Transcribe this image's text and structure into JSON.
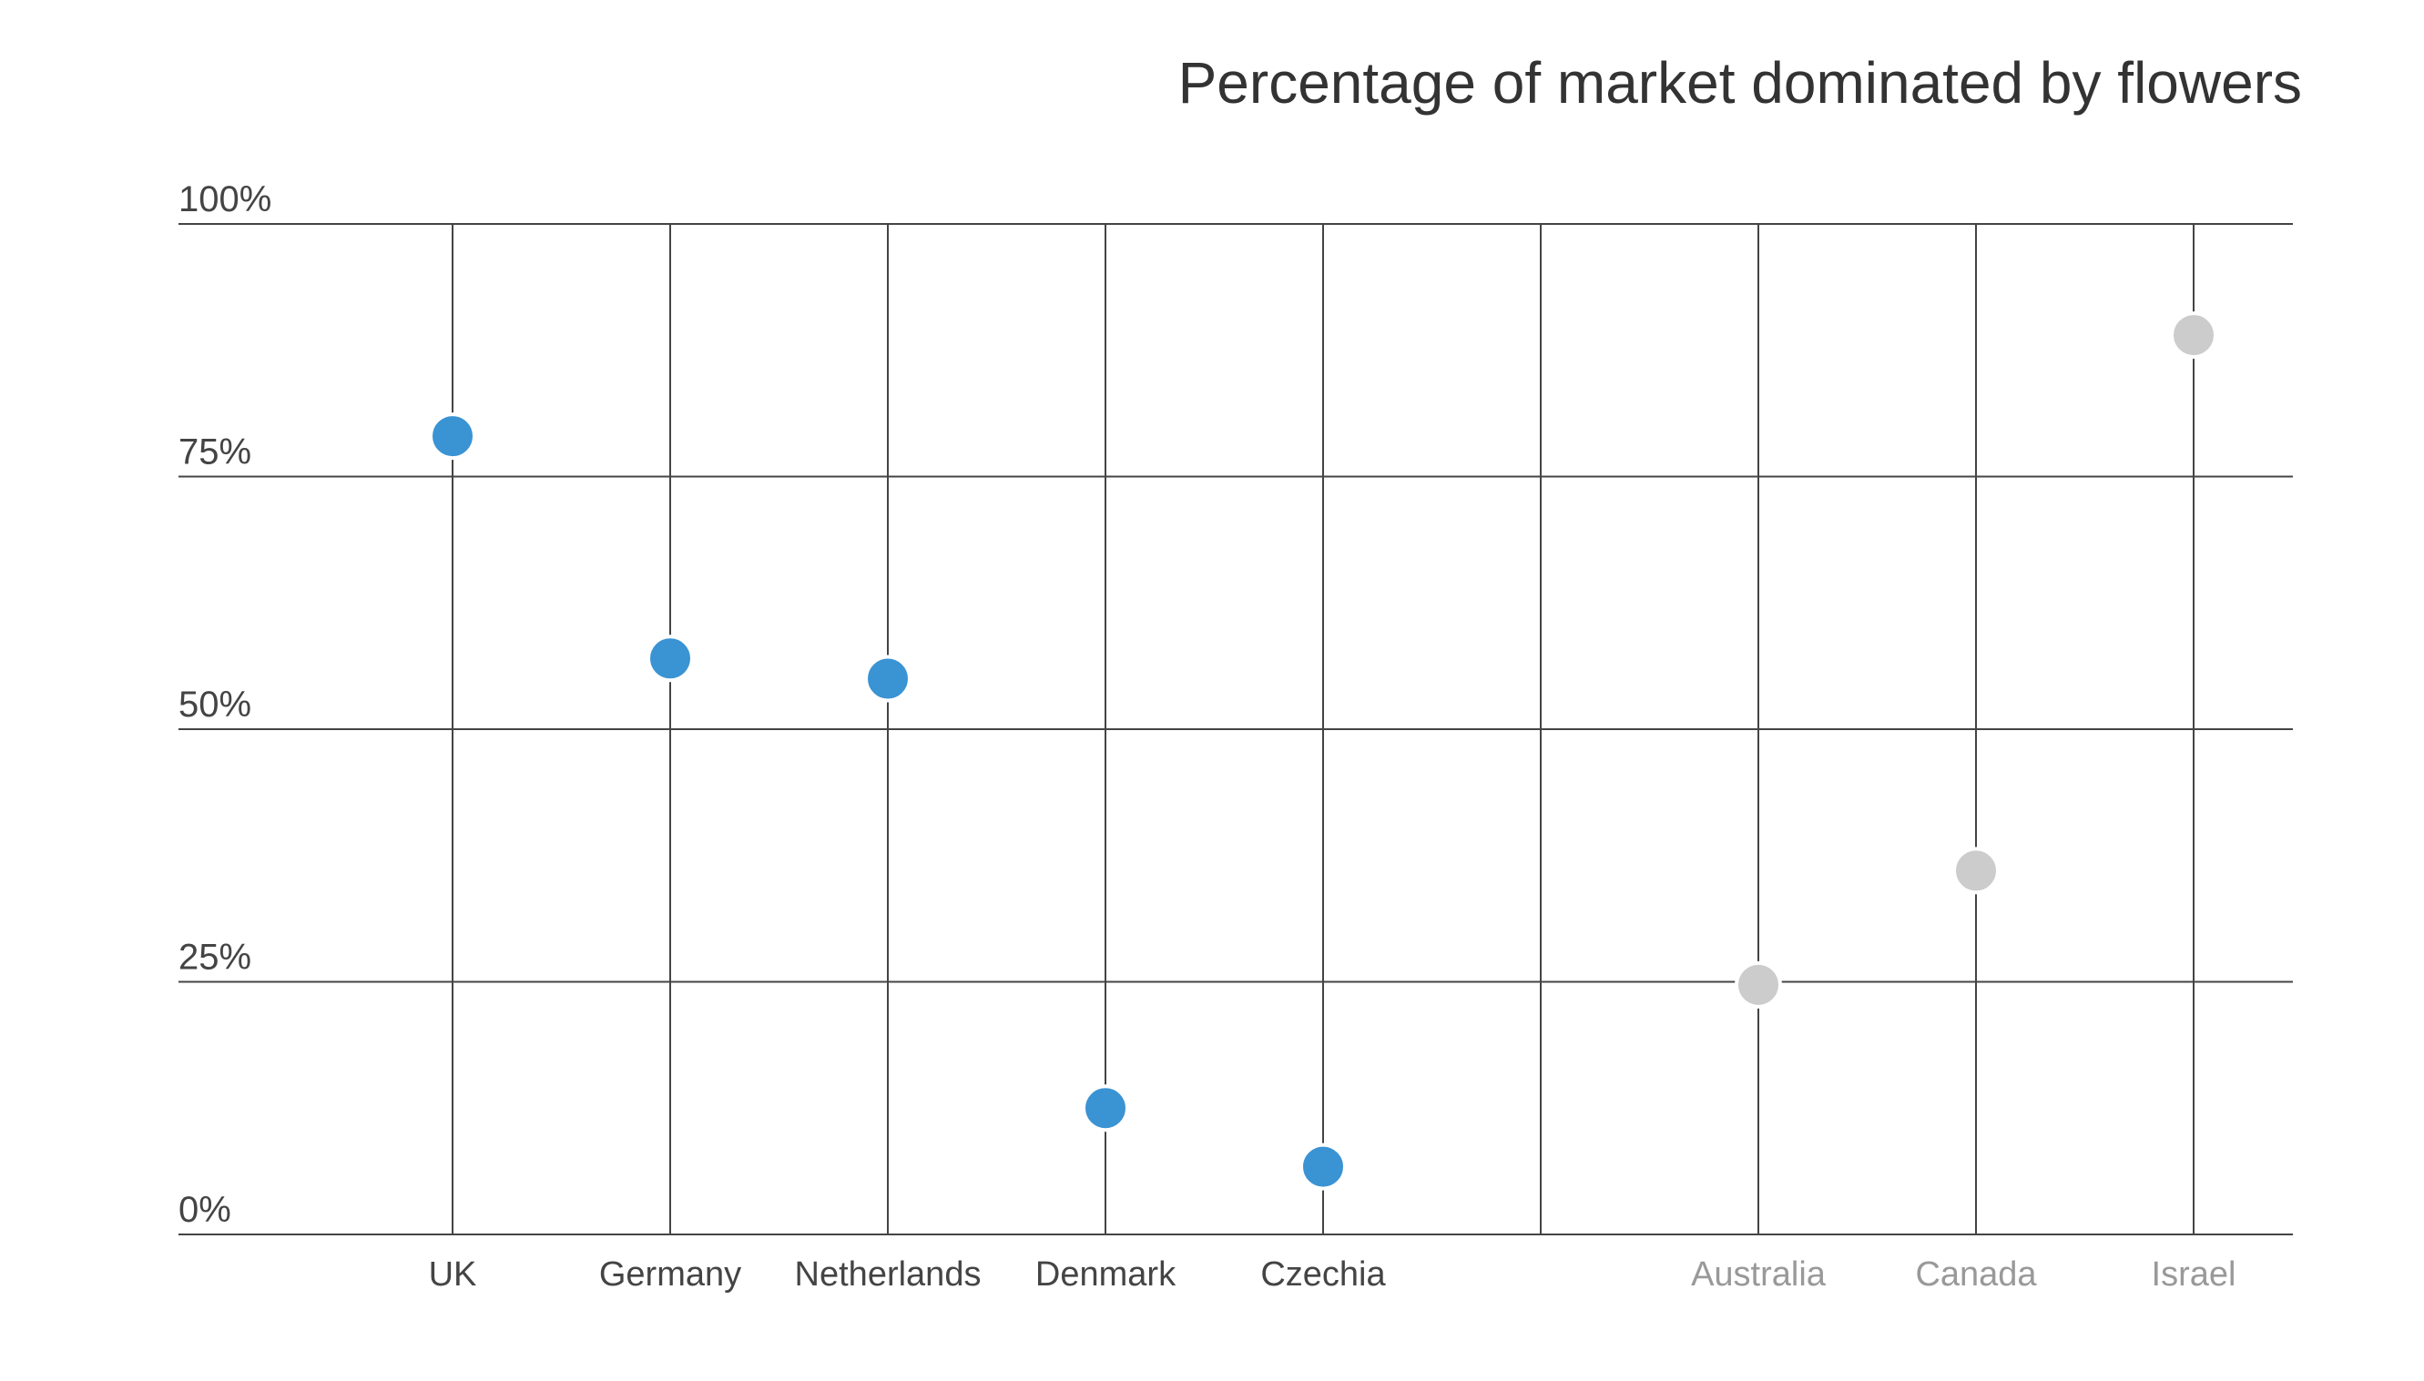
{
  "chart_data": {
    "type": "scatter",
    "title": "Percentage of market dominated by flowers",
    "xlabel": "",
    "ylabel": "",
    "ylim": [
      0,
      100
    ],
    "yticks": [
      0,
      25,
      50,
      75,
      100
    ],
    "ytick_labels": [
      "0%",
      "25%",
      "50%",
      "75%",
      "100%"
    ],
    "grid": true,
    "categories": [
      "UK",
      "Germany",
      "Netherlands",
      "Denmark",
      "Czechia",
      "",
      "Australia",
      "Canada",
      "Israel"
    ],
    "values": [
      79,
      57,
      55,
      12.5,
      6.7,
      null,
      24.7,
      36,
      89
    ],
    "highlight": [
      true,
      true,
      true,
      true,
      true,
      false,
      false,
      false,
      false
    ],
    "colors": {
      "highlight_point": "#3a93d3",
      "muted_point": "#cccccc",
      "highlight_label": "#444444",
      "muted_label": "#999999",
      "grid": "#444444"
    }
  }
}
